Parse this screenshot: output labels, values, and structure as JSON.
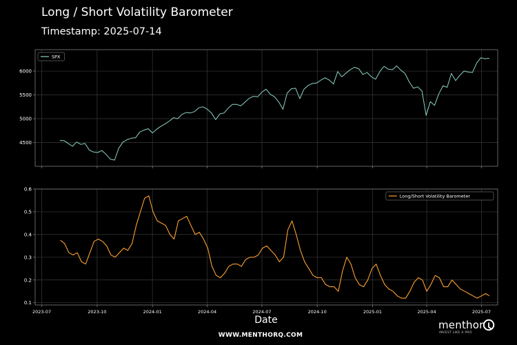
{
  "title": "Long / Short Volatility Barometer",
  "subtitle": "Timestamp: 2025-07-14",
  "xlabel": "Date",
  "footer": "WWW.MENTHORQ.COM",
  "logo": {
    "word": "menthor",
    "tagline": "INVEST LIKE A PRO",
    "icon": "q-logo-icon"
  },
  "colors": {
    "background": "#000000",
    "spx": "#8dd3c7",
    "barometer": "#ffa133",
    "grid": "#3a3a3a",
    "frame": "#7f7f7f"
  },
  "chart_data": [
    {
      "type": "line",
      "grid": true,
      "legend_placement": "top-left",
      "ylim": [
        4000,
        6450
      ],
      "yticks": [
        4500,
        5000,
        5500,
        6000
      ],
      "xlim": [
        "2023-06-20",
        "2025-07-28"
      ],
      "series": [
        {
          "name": "SPX",
          "points": [
            [
              "2023-07-31",
              4540
            ],
            [
              "2023-08-07",
              4540
            ],
            [
              "2023-08-14",
              4480
            ],
            [
              "2023-08-21",
              4420
            ],
            [
              "2023-08-28",
              4510
            ],
            [
              "2023-09-04",
              4460
            ],
            [
              "2023-09-11",
              4480
            ],
            [
              "2023-09-18",
              4340
            ],
            [
              "2023-09-25",
              4300
            ],
            [
              "2023-10-02",
              4290
            ],
            [
              "2023-10-09",
              4330
            ],
            [
              "2023-10-16",
              4250
            ],
            [
              "2023-10-23",
              4150
            ],
            [
              "2023-10-30",
              4130
            ],
            [
              "2023-11-06",
              4380
            ],
            [
              "2023-11-13",
              4510
            ],
            [
              "2023-11-20",
              4560
            ],
            [
              "2023-11-27",
              4590
            ],
            [
              "2023-12-04",
              4600
            ],
            [
              "2023-12-11",
              4720
            ],
            [
              "2023-12-18",
              4760
            ],
            [
              "2023-12-25",
              4790
            ],
            [
              "2024-01-01",
              4700
            ],
            [
              "2024-01-08",
              4780
            ],
            [
              "2024-01-15",
              4840
            ],
            [
              "2024-01-22",
              4890
            ],
            [
              "2024-01-29",
              4950
            ],
            [
              "2024-02-05",
              5020
            ],
            [
              "2024-02-12",
              5000
            ],
            [
              "2024-02-19",
              5090
            ],
            [
              "2024-02-26",
              5130
            ],
            [
              "2024-03-04",
              5120
            ],
            [
              "2024-03-11",
              5150
            ],
            [
              "2024-03-18",
              5230
            ],
            [
              "2024-03-25",
              5250
            ],
            [
              "2024-04-01",
              5200
            ],
            [
              "2024-04-08",
              5120
            ],
            [
              "2024-04-15",
              4980
            ],
            [
              "2024-04-22",
              5100
            ],
            [
              "2024-04-29",
              5120
            ],
            [
              "2024-05-06",
              5220
            ],
            [
              "2024-05-13",
              5300
            ],
            [
              "2024-05-20",
              5300
            ],
            [
              "2024-05-27",
              5270
            ],
            [
              "2024-06-03",
              5350
            ],
            [
              "2024-06-10",
              5430
            ],
            [
              "2024-06-17",
              5470
            ],
            [
              "2024-06-24",
              5460
            ],
            [
              "2024-07-01",
              5560
            ],
            [
              "2024-07-08",
              5620
            ],
            [
              "2024-07-15",
              5510
            ],
            [
              "2024-07-22",
              5460
            ],
            [
              "2024-07-29",
              5350
            ],
            [
              "2024-08-05",
              5200
            ],
            [
              "2024-08-12",
              5540
            ],
            [
              "2024-08-19",
              5630
            ],
            [
              "2024-08-26",
              5640
            ],
            [
              "2024-09-02",
              5420
            ],
            [
              "2024-09-09",
              5620
            ],
            [
              "2024-09-16",
              5700
            ],
            [
              "2024-09-23",
              5740
            ],
            [
              "2024-09-30",
              5750
            ],
            [
              "2024-10-07",
              5810
            ],
            [
              "2024-10-14",
              5860
            ],
            [
              "2024-10-21",
              5810
            ],
            [
              "2024-10-28",
              5730
            ],
            [
              "2024-11-04",
              5990
            ],
            [
              "2024-11-11",
              5880
            ],
            [
              "2024-11-18",
              5960
            ],
            [
              "2024-11-25",
              6030
            ],
            [
              "2024-12-02",
              6080
            ],
            [
              "2024-12-09",
              6050
            ],
            [
              "2024-12-16",
              5930
            ],
            [
              "2024-12-23",
              5970
            ],
            [
              "2024-12-30",
              5880
            ],
            [
              "2025-01-06",
              5830
            ],
            [
              "2025-01-13",
              5990
            ],
            [
              "2025-01-20",
              6100
            ],
            [
              "2025-01-27",
              6040
            ],
            [
              "2025-02-03",
              6030
            ],
            [
              "2025-02-10",
              6110
            ],
            [
              "2025-02-17",
              6020
            ],
            [
              "2025-02-24",
              5950
            ],
            [
              "2025-03-03",
              5770
            ],
            [
              "2025-03-10",
              5640
            ],
            [
              "2025-03-17",
              5670
            ],
            [
              "2025-03-24",
              5580
            ],
            [
              "2025-03-31",
              5070
            ],
            [
              "2025-04-07",
              5360
            ],
            [
              "2025-04-14",
              5280
            ],
            [
              "2025-04-21",
              5520
            ],
            [
              "2025-04-28",
              5690
            ],
            [
              "2025-05-05",
              5660
            ],
            [
              "2025-05-12",
              5950
            ],
            [
              "2025-05-19",
              5800
            ],
            [
              "2025-05-26",
              5910
            ],
            [
              "2025-06-02",
              6000
            ],
            [
              "2025-06-09",
              5980
            ],
            [
              "2025-06-16",
              5970
            ],
            [
              "2025-06-23",
              6170
            ],
            [
              "2025-06-30",
              6280
            ],
            [
              "2025-07-07",
              6260
            ],
            [
              "2025-07-14",
              6270
            ]
          ]
        }
      ]
    },
    {
      "type": "line",
      "grid": true,
      "legend_placement": "top-right",
      "ylim": [
        0.09,
        0.6
      ],
      "yticks": [
        0.1,
        0.2,
        0.3,
        0.4,
        0.5,
        0.6
      ],
      "xlim": [
        "2023-06-20",
        "2025-07-28"
      ],
      "xticks": [
        "2023-07",
        "2023-10",
        "2024-01",
        "2024-04",
        "2024-07",
        "2024-10",
        "2025-01",
        "2025-04",
        "2025-07"
      ],
      "series": [
        {
          "name": "Long/Short Volatility Barometer",
          "points": [
            [
              "2023-08-01",
              0.375
            ],
            [
              "2023-08-08",
              0.36
            ],
            [
              "2023-08-15",
              0.32
            ],
            [
              "2023-08-22",
              0.31
            ],
            [
              "2023-08-29",
              0.32
            ],
            [
              "2023-09-05",
              0.28
            ],
            [
              "2023-09-12",
              0.27
            ],
            [
              "2023-09-19",
              0.32
            ],
            [
              "2023-09-26",
              0.37
            ],
            [
              "2023-10-03",
              0.38
            ],
            [
              "2023-10-10",
              0.37
            ],
            [
              "2023-10-17",
              0.35
            ],
            [
              "2023-10-24",
              0.31
            ],
            [
              "2023-10-31",
              0.3
            ],
            [
              "2023-11-07",
              0.32
            ],
            [
              "2023-11-14",
              0.34
            ],
            [
              "2023-11-21",
              0.33
            ],
            [
              "2023-11-28",
              0.36
            ],
            [
              "2023-12-05",
              0.44
            ],
            [
              "2023-12-12",
              0.5
            ],
            [
              "2023-12-19",
              0.56
            ],
            [
              "2023-12-26",
              0.57
            ],
            [
              "2024-01-02",
              0.5
            ],
            [
              "2024-01-09",
              0.46
            ],
            [
              "2024-01-16",
              0.45
            ],
            [
              "2024-01-23",
              0.44
            ],
            [
              "2024-01-30",
              0.4
            ],
            [
              "2024-02-06",
              0.38
            ],
            [
              "2024-02-13",
              0.46
            ],
            [
              "2024-02-20",
              0.47
            ],
            [
              "2024-02-27",
              0.48
            ],
            [
              "2024-03-05",
              0.44
            ],
            [
              "2024-03-12",
              0.4
            ],
            [
              "2024-03-19",
              0.41
            ],
            [
              "2024-03-26",
              0.38
            ],
            [
              "2024-04-02",
              0.34
            ],
            [
              "2024-04-09",
              0.26
            ],
            [
              "2024-04-16",
              0.22
            ],
            [
              "2024-04-23",
              0.21
            ],
            [
              "2024-04-30",
              0.23
            ],
            [
              "2024-05-07",
              0.26
            ],
            [
              "2024-05-14",
              0.27
            ],
            [
              "2024-05-21",
              0.27
            ],
            [
              "2024-05-28",
              0.26
            ],
            [
              "2024-06-04",
              0.29
            ],
            [
              "2024-06-11",
              0.3
            ],
            [
              "2024-06-18",
              0.3
            ],
            [
              "2024-06-25",
              0.31
            ],
            [
              "2024-07-02",
              0.34
            ],
            [
              "2024-07-09",
              0.35
            ],
            [
              "2024-07-16",
              0.33
            ],
            [
              "2024-07-23",
              0.31
            ],
            [
              "2024-07-30",
              0.28
            ],
            [
              "2024-08-06",
              0.3
            ],
            [
              "2024-08-13",
              0.42
            ],
            [
              "2024-08-20",
              0.46
            ],
            [
              "2024-08-27",
              0.4
            ],
            [
              "2024-09-03",
              0.33
            ],
            [
              "2024-09-10",
              0.28
            ],
            [
              "2024-09-17",
              0.25
            ],
            [
              "2024-09-24",
              0.22
            ],
            [
              "2024-10-01",
              0.21
            ],
            [
              "2024-10-08",
              0.21
            ],
            [
              "2024-10-15",
              0.18
            ],
            [
              "2024-10-22",
              0.17
            ],
            [
              "2024-10-29",
              0.17
            ],
            [
              "2024-11-05",
              0.15
            ],
            [
              "2024-11-12",
              0.24
            ],
            [
              "2024-11-19",
              0.3
            ],
            [
              "2024-11-26",
              0.27
            ],
            [
              "2024-12-03",
              0.21
            ],
            [
              "2024-12-10",
              0.18
            ],
            [
              "2024-12-17",
              0.17
            ],
            [
              "2024-12-24",
              0.2
            ],
            [
              "2024-12-31",
              0.25
            ],
            [
              "2025-01-07",
              0.27
            ],
            [
              "2025-01-14",
              0.22
            ],
            [
              "2025-01-21",
              0.18
            ],
            [
              "2025-01-28",
              0.16
            ],
            [
              "2025-02-04",
              0.15
            ],
            [
              "2025-02-11",
              0.13
            ],
            [
              "2025-02-18",
              0.12
            ],
            [
              "2025-02-25",
              0.12
            ],
            [
              "2025-03-04",
              0.15
            ],
            [
              "2025-03-11",
              0.19
            ],
            [
              "2025-03-18",
              0.21
            ],
            [
              "2025-03-25",
              0.2
            ],
            [
              "2025-04-01",
              0.15
            ],
            [
              "2025-04-08",
              0.18
            ],
            [
              "2025-04-15",
              0.22
            ],
            [
              "2025-04-22",
              0.21
            ],
            [
              "2025-04-29",
              0.17
            ],
            [
              "2025-05-06",
              0.17
            ],
            [
              "2025-05-13",
              0.2
            ],
            [
              "2025-05-20",
              0.18
            ],
            [
              "2025-05-27",
              0.16
            ],
            [
              "2025-06-03",
              0.15
            ],
            [
              "2025-06-10",
              0.14
            ],
            [
              "2025-06-17",
              0.13
            ],
            [
              "2025-06-24",
              0.12
            ],
            [
              "2025-07-01",
              0.13
            ],
            [
              "2025-07-08",
              0.14
            ],
            [
              "2025-07-14",
              0.13
            ]
          ]
        }
      ]
    }
  ]
}
